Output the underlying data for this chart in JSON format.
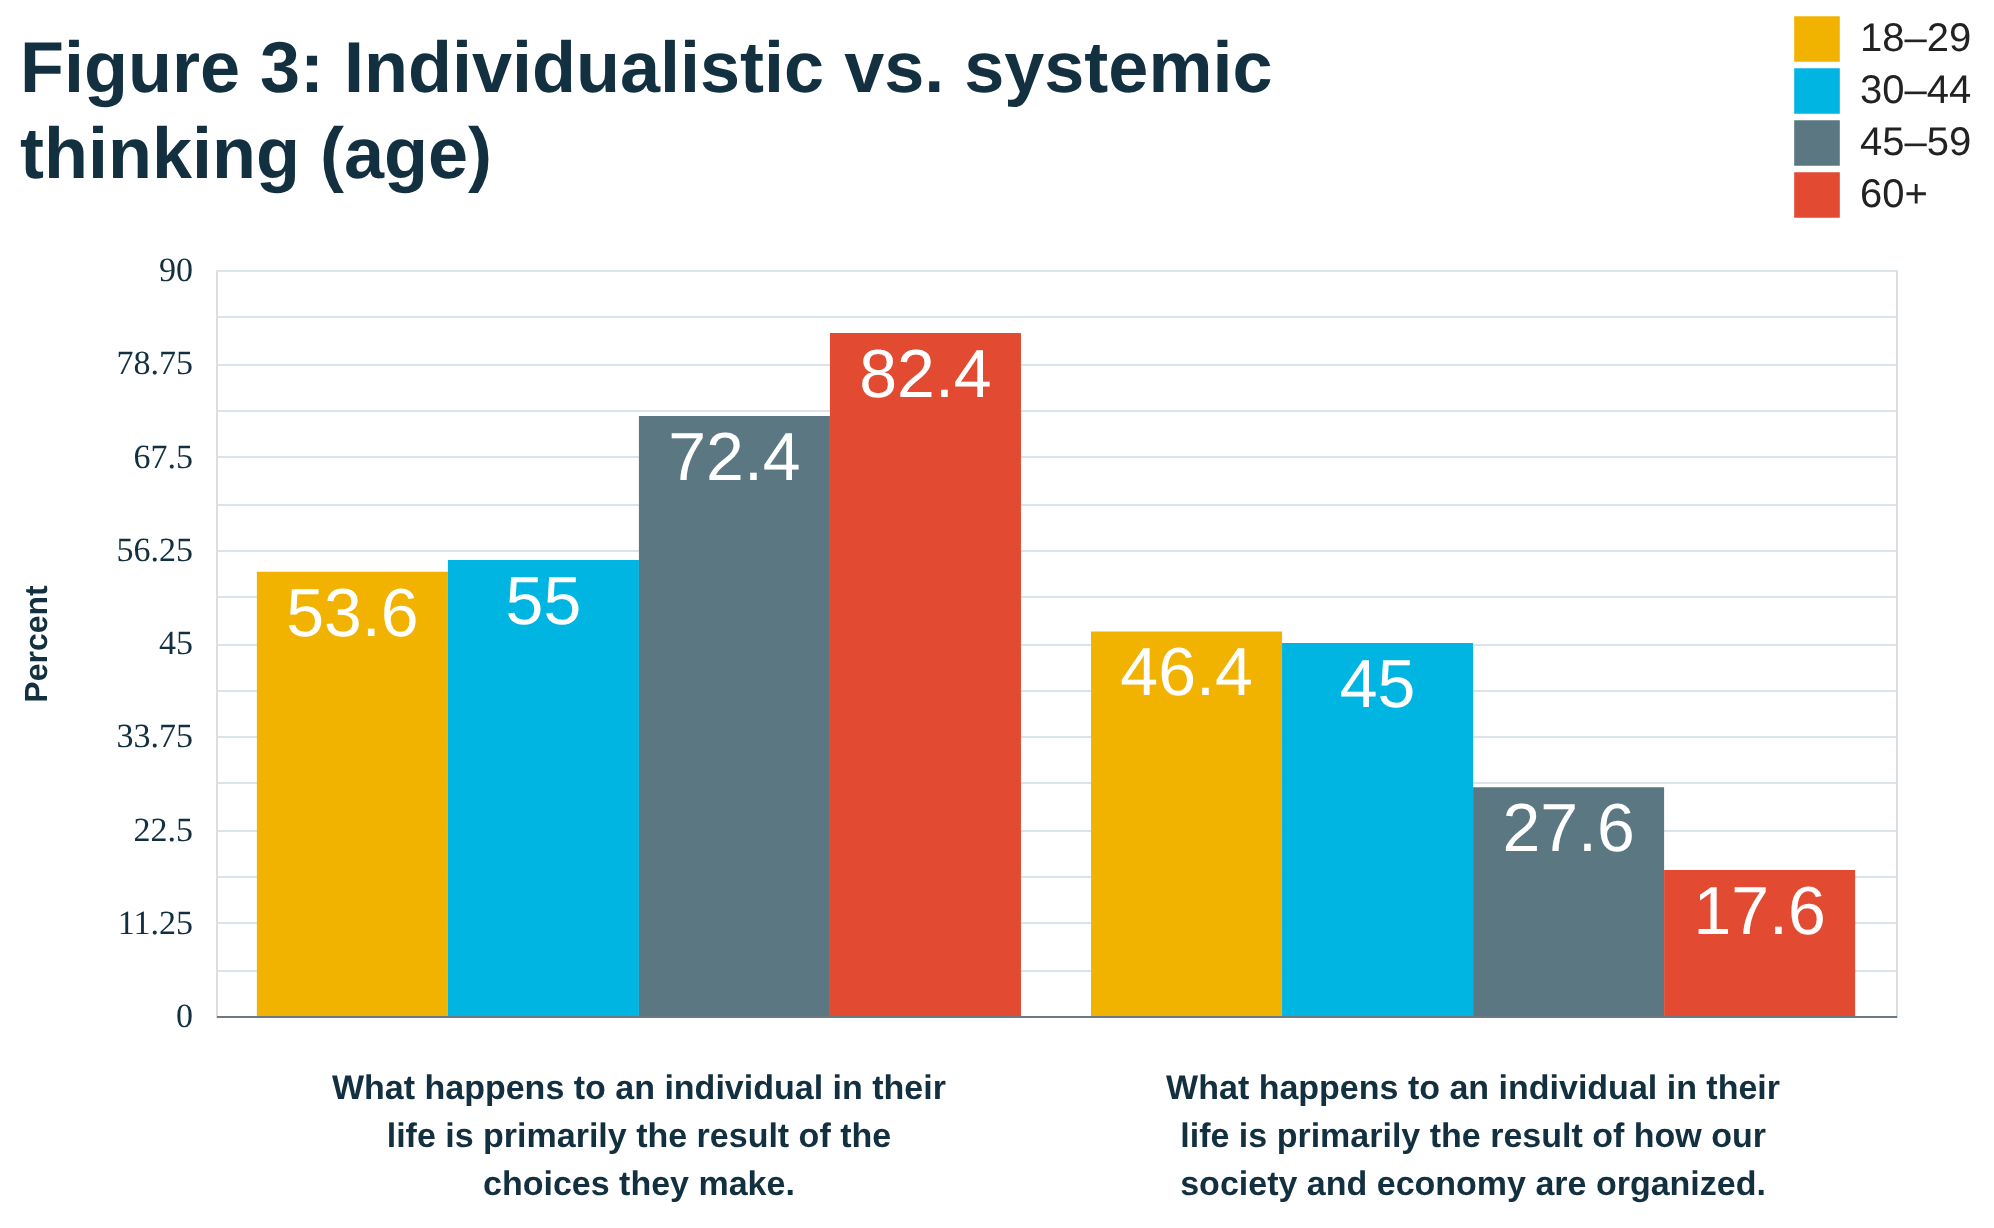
{
  "chart_data": {
    "type": "bar",
    "title": "Figure 3: Individualistic vs. systemic thinking (age)",
    "ylabel": "Percent",
    "categories": [
      "What happens to an individual in their life is primarily the result of the choices they make.",
      "What happens to an individual in their life is primarily the result of how our society and economy are organized."
    ],
    "series": [
      {
        "name": "18–29",
        "color": "#f2b300",
        "values": [
          53.6,
          46.4
        ]
      },
      {
        "name": "30–44",
        "color": "#00b5e2",
        "values": [
          55,
          45
        ]
      },
      {
        "name": "45–59",
        "color": "#5a7782",
        "values": [
          72.4,
          27.6
        ]
      },
      {
        "name": "60+",
        "color": "#e24a32",
        "values": [
          82.4,
          17.6
        ]
      }
    ],
    "ylim": [
      0,
      90
    ],
    "yticks": [
      0,
      {
        "value": 5.625,
        "label": null
      },
      11.25,
      {
        "value": 16.875,
        "label": null
      },
      22.5,
      {
        "value": 28.125,
        "label": null
      },
      33.75,
      {
        "value": 39.375,
        "label": null
      },
      45,
      {
        "value": 50.625,
        "label": null
      },
      56.25,
      {
        "value": 61.875,
        "label": null
      },
      67.5,
      {
        "value": 73.125,
        "label": null
      },
      78.75,
      {
        "value": 84.375,
        "label": null
      },
      90
    ],
    "grid": "y",
    "legend": "top right",
    "data_labels": true
  }
}
